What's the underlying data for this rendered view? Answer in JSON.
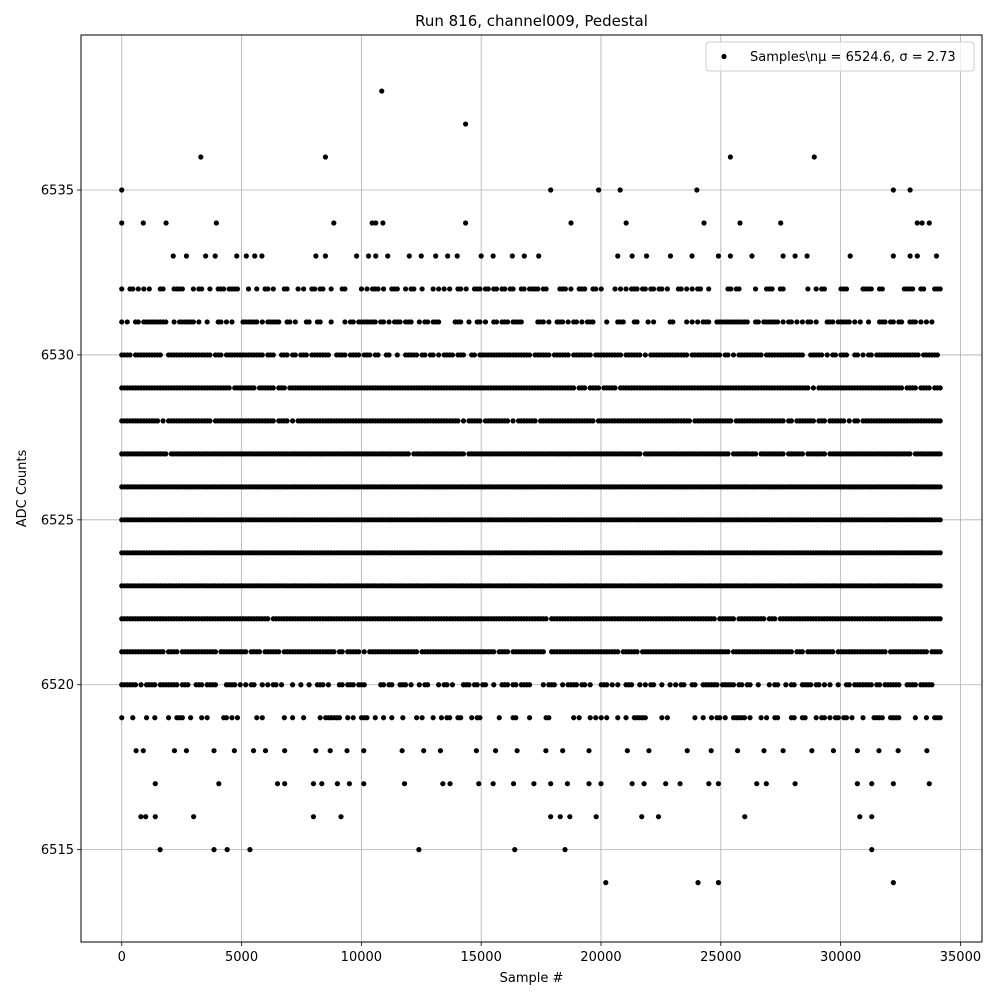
{
  "chart_data": {
    "type": "scatter",
    "title": "Run 816, channel009, Pedestal",
    "xlabel": "Sample #",
    "ylabel": "ADC Counts",
    "xlim": [
      -1700,
      35900
    ],
    "ylim": [
      6512.2,
      6539.7
    ],
    "xticks": [
      0,
      5000,
      10000,
      15000,
      20000,
      25000,
      30000,
      35000
    ],
    "yticks": [
      6515,
      6520,
      6525,
      6530,
      6535
    ],
    "grid": true,
    "legend_position": "top-right",
    "marker_color": "#000000",
    "series": [
      {
        "name": "Samples\\nμ = 6524.6, σ = 2.73",
        "dense_levels": [
          {
            "y": 6519,
            "x_start": 0,
            "x_end": 34200,
            "density": 0.35
          },
          {
            "y": 6520,
            "x_start": 0,
            "x_end": 34200,
            "density": 0.6
          },
          {
            "y": 6521,
            "x_start": 0,
            "x_end": 34200,
            "density": 0.9
          },
          {
            "y": 6522,
            "x_start": 0,
            "x_end": 34200,
            "density": 0.97
          },
          {
            "y": 6523,
            "x_start": 0,
            "x_end": 34200,
            "density": 1.0
          },
          {
            "y": 6524,
            "x_start": 0,
            "x_end": 34200,
            "density": 1.0
          },
          {
            "y": 6525,
            "x_start": 0,
            "x_end": 34200,
            "density": 1.0
          },
          {
            "y": 6526,
            "x_start": 0,
            "x_end": 34200,
            "density": 1.0
          },
          {
            "y": 6527,
            "x_start": 0,
            "x_end": 34200,
            "density": 0.97
          },
          {
            "y": 6528,
            "x_start": 0,
            "x_end": 34200,
            "density": 0.95
          },
          {
            "y": 6529,
            "x_start": 0,
            "x_end": 34200,
            "density": 0.95
          },
          {
            "y": 6530,
            "x_start": 0,
            "x_end": 34200,
            "density": 0.8
          },
          {
            "y": 6531,
            "x_start": 0,
            "x_end": 34200,
            "density": 0.6
          },
          {
            "y": 6532,
            "x_start": 0,
            "x_end": 34200,
            "density": 0.45
          }
        ],
        "points": [
          [
            0,
            6535
          ],
          [
            8500,
            6536
          ],
          [
            3300,
            6536
          ],
          [
            10850,
            6538
          ],
          [
            14350,
            6537
          ],
          [
            17900,
            6535
          ],
          [
            19900,
            6535
          ],
          [
            20800,
            6535
          ],
          [
            24000,
            6535
          ],
          [
            25400,
            6536
          ],
          [
            28900,
            6536
          ],
          [
            32200,
            6535
          ],
          [
            32900,
            6535
          ],
          [
            0,
            6534
          ],
          [
            900,
            6534
          ],
          [
            1850,
            6534
          ],
          [
            3950,
            6534
          ],
          [
            8850,
            6534
          ],
          [
            10450,
            6534
          ],
          [
            10600,
            6534
          ],
          [
            10900,
            6534
          ],
          [
            14350,
            6534
          ],
          [
            18750,
            6534
          ],
          [
            21050,
            6534
          ],
          [
            24300,
            6534
          ],
          [
            25800,
            6534
          ],
          [
            27500,
            6534
          ],
          [
            33200,
            6534
          ],
          [
            33400,
            6534
          ],
          [
            33700,
            6534
          ],
          [
            2150,
            6533
          ],
          [
            2700,
            6533
          ],
          [
            3500,
            6533
          ],
          [
            3900,
            6533
          ],
          [
            4800,
            6533
          ],
          [
            5200,
            6533
          ],
          [
            5550,
            6533
          ],
          [
            5850,
            6533
          ],
          [
            8100,
            6533
          ],
          [
            8500,
            6533
          ],
          [
            9800,
            6533
          ],
          [
            10300,
            6533
          ],
          [
            10600,
            6533
          ],
          [
            11100,
            6533
          ],
          [
            12000,
            6533
          ],
          [
            12500,
            6533
          ],
          [
            13100,
            6533
          ],
          [
            13600,
            6533
          ],
          [
            14000,
            6533
          ],
          [
            15000,
            6533
          ],
          [
            15500,
            6533
          ],
          [
            16300,
            6533
          ],
          [
            16800,
            6533
          ],
          [
            17400,
            6533
          ],
          [
            20700,
            6533
          ],
          [
            21300,
            6533
          ],
          [
            21900,
            6533
          ],
          [
            22900,
            6533
          ],
          [
            23800,
            6533
          ],
          [
            24900,
            6533
          ],
          [
            25400,
            6533
          ],
          [
            26300,
            6533
          ],
          [
            27600,
            6533
          ],
          [
            28100,
            6533
          ],
          [
            28600,
            6533
          ],
          [
            30400,
            6533
          ],
          [
            32200,
            6533
          ],
          [
            32900,
            6533
          ],
          [
            33200,
            6533
          ],
          [
            34000,
            6533
          ],
          [
            600,
            6518
          ],
          [
            900,
            6518
          ],
          [
            2200,
            6518
          ],
          [
            2700,
            6518
          ],
          [
            3850,
            6518
          ],
          [
            4700,
            6518
          ],
          [
            5500,
            6518
          ],
          [
            6000,
            6518
          ],
          [
            6800,
            6518
          ],
          [
            8100,
            6518
          ],
          [
            8700,
            6518
          ],
          [
            9400,
            6518
          ],
          [
            10100,
            6518
          ],
          [
            11700,
            6518
          ],
          [
            12600,
            6518
          ],
          [
            13300,
            6518
          ],
          [
            14800,
            6518
          ],
          [
            15600,
            6518
          ],
          [
            16500,
            6518
          ],
          [
            17700,
            6518
          ],
          [
            18400,
            6518
          ],
          [
            19500,
            6518
          ],
          [
            21100,
            6518
          ],
          [
            22000,
            6518
          ],
          [
            23600,
            6518
          ],
          [
            24600,
            6518
          ],
          [
            25700,
            6518
          ],
          [
            26800,
            6518
          ],
          [
            27600,
            6518
          ],
          [
            28800,
            6518
          ],
          [
            29700,
            6518
          ],
          [
            30700,
            6518
          ],
          [
            31600,
            6518
          ],
          [
            32400,
            6518
          ],
          [
            33600,
            6518
          ],
          [
            1400,
            6517
          ],
          [
            4050,
            6517
          ],
          [
            6500,
            6517
          ],
          [
            6800,
            6517
          ],
          [
            8000,
            6517
          ],
          [
            8350,
            6517
          ],
          [
            9000,
            6517
          ],
          [
            9500,
            6517
          ],
          [
            10100,
            6517
          ],
          [
            11800,
            6517
          ],
          [
            13400,
            6517
          ],
          [
            13700,
            6517
          ],
          [
            14900,
            6517
          ],
          [
            15500,
            6517
          ],
          [
            16350,
            6517
          ],
          [
            17200,
            6517
          ],
          [
            17900,
            6517
          ],
          [
            18600,
            6517
          ],
          [
            19500,
            6517
          ],
          [
            20000,
            6517
          ],
          [
            21300,
            6517
          ],
          [
            21800,
            6517
          ],
          [
            22700,
            6517
          ],
          [
            23300,
            6517
          ],
          [
            24500,
            6517
          ],
          [
            24900,
            6517
          ],
          [
            26500,
            6517
          ],
          [
            26900,
            6517
          ],
          [
            28100,
            6517
          ],
          [
            30700,
            6517
          ],
          [
            31300,
            6517
          ],
          [
            32200,
            6517
          ],
          [
            33700,
            6517
          ],
          [
            800,
            6516
          ],
          [
            1000,
            6516
          ],
          [
            1400,
            6516
          ],
          [
            3000,
            6516
          ],
          [
            8000,
            6516
          ],
          [
            9150,
            6516
          ],
          [
            17900,
            6516
          ],
          [
            18300,
            6516
          ],
          [
            18700,
            6516
          ],
          [
            19800,
            6516
          ],
          [
            21700,
            6516
          ],
          [
            22400,
            6516
          ],
          [
            26000,
            6516
          ],
          [
            30800,
            6516
          ],
          [
            31300,
            6516
          ],
          [
            1600,
            6515
          ],
          [
            3850,
            6515
          ],
          [
            4400,
            6515
          ],
          [
            5350,
            6515
          ],
          [
            12400,
            6515
          ],
          [
            16400,
            6515
          ],
          [
            18500,
            6515
          ],
          [
            31300,
            6515
          ],
          [
            20200,
            6514
          ],
          [
            24050,
            6514
          ],
          [
            24900,
            6514
          ],
          [
            32200,
            6514
          ]
        ]
      }
    ]
  }
}
